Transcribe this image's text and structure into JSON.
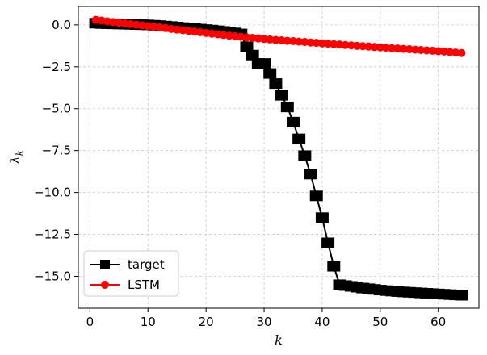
{
  "chart_data": {
    "type": "line",
    "xlabel": "k",
    "ylabel": "λ",
    "ylabel_sub": "k",
    "xlim": [
      -2,
      67
    ],
    "ylim": [
      -16.9,
      1.1
    ],
    "xticks": [
      0,
      10,
      20,
      30,
      40,
      50,
      60
    ],
    "yticks": [
      0.0,
      -2.5,
      -5.0,
      -7.5,
      -10.0,
      -12.5,
      -15.0
    ],
    "ytick_labels": [
      "0.0",
      "−2.5",
      "−5.0",
      "−7.5",
      "−10.0",
      "−12.5",
      "−15.0"
    ],
    "grid": true,
    "legend_position": "lower-left",
    "series": [
      {
        "name": "target",
        "color": "#000000",
        "marker": "square",
        "x": [
          1,
          2,
          3,
          4,
          5,
          6,
          7,
          8,
          9,
          10,
          11,
          12,
          13,
          14,
          15,
          16,
          17,
          18,
          19,
          20,
          21,
          22,
          23,
          24,
          25,
          26,
          27,
          28,
          29,
          30,
          31,
          32,
          33,
          34,
          35,
          36,
          37,
          38,
          39,
          40,
          41,
          42,
          43,
          44,
          45,
          46,
          47,
          48,
          49,
          50,
          51,
          52,
          53,
          54,
          55,
          56,
          57,
          58,
          59,
          60,
          61,
          62,
          63,
          64
        ],
        "values": [
          0.1,
          0.08,
          0.07,
          0.06,
          0.05,
          0.04,
          0.03,
          0.02,
          0.01,
          0.0,
          -0.02,
          -0.04,
          -0.07,
          -0.1,
          -0.13,
          -0.16,
          -0.19,
          -0.22,
          -0.25,
          -0.28,
          -0.31,
          -0.35,
          -0.39,
          -0.43,
          -0.48,
          -0.54,
          -1.3,
          -1.8,
          -2.3,
          -2.3,
          -2.9,
          -3.5,
          -4.2,
          -4.9,
          -5.8,
          -6.8,
          -7.8,
          -8.9,
          -10.2,
          -11.5,
          -13.0,
          -14.4,
          -15.5,
          -15.55,
          -15.6,
          -15.65,
          -15.7,
          -15.74,
          -15.78,
          -15.82,
          -15.85,
          -15.88,
          -15.91,
          -15.93,
          -15.95,
          -15.97,
          -15.99,
          -16.01,
          -16.03,
          -16.05,
          -16.07,
          -16.09,
          -16.11,
          -16.13
        ]
      },
      {
        "name": "LSTM",
        "color": "#ff0000",
        "marker": "circle",
        "x": [
          1,
          2,
          3,
          4,
          5,
          6,
          7,
          8,
          9,
          10,
          11,
          12,
          13,
          14,
          15,
          16,
          17,
          18,
          19,
          20,
          21,
          22,
          23,
          24,
          25,
          26,
          27,
          28,
          29,
          30,
          31,
          32,
          33,
          34,
          35,
          36,
          37,
          38,
          39,
          40,
          41,
          42,
          43,
          44,
          45,
          46,
          47,
          48,
          49,
          50,
          51,
          52,
          53,
          54,
          55,
          56,
          57,
          58,
          59,
          60,
          61,
          62,
          63,
          64
        ],
        "values": [
          0.3,
          0.26,
          0.21,
          0.17,
          0.13,
          0.09,
          0.05,
          0.01,
          -0.03,
          -0.07,
          -0.11,
          -0.15,
          -0.19,
          -0.24,
          -0.28,
          -0.32,
          -0.36,
          -0.4,
          -0.44,
          -0.48,
          -0.52,
          -0.56,
          -0.6,
          -0.64,
          -0.68,
          -0.71,
          -0.75,
          -0.78,
          -0.81,
          -0.84,
          -0.87,
          -0.9,
          -0.92,
          -0.95,
          -0.97,
          -1.0,
          -1.02,
          -1.05,
          -1.07,
          -1.1,
          -1.12,
          -1.15,
          -1.17,
          -1.2,
          -1.22,
          -1.25,
          -1.27,
          -1.29,
          -1.32,
          -1.34,
          -1.36,
          -1.39,
          -1.41,
          -1.43,
          -1.45,
          -1.48,
          -1.5,
          -1.52,
          -1.54,
          -1.57,
          -1.59,
          -1.62,
          -1.65,
          -1.68
        ]
      }
    ]
  }
}
